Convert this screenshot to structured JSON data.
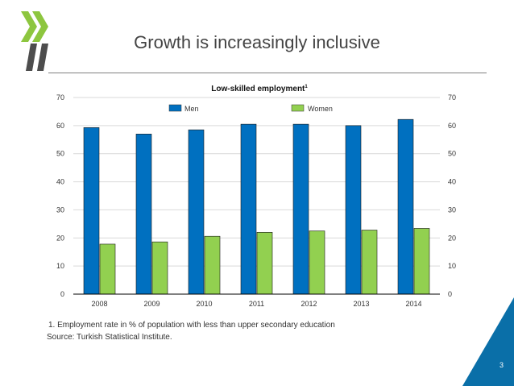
{
  "slide": {
    "title": "Growth is increasingly inclusive",
    "footnote": "1. Employment rate in % of population with less than upper secondary education",
    "source": "Source: Turkish Statistical Institute.",
    "page_number": "3"
  },
  "colors": {
    "men": "#0070c0",
    "women": "#92d050",
    "logo_green": "#8dc63f",
    "logo_dark": "#4d4d4d",
    "corner_blue": "#0a6fa8"
  },
  "chart_data": {
    "type": "bar",
    "title": "Low-skilled employment",
    "title_superscript": "1",
    "categories": [
      "2008",
      "2009",
      "2010",
      "2011",
      "2012",
      "2013",
      "2014"
    ],
    "series": [
      {
        "name": "Men",
        "values": [
          59.3,
          57.0,
          58.5,
          60.5,
          60.5,
          60.0,
          62.2
        ]
      },
      {
        "name": "Women",
        "values": [
          17.8,
          18.6,
          20.6,
          22.0,
          22.5,
          22.8,
          23.4
        ]
      }
    ],
    "ylim": [
      0,
      70
    ],
    "yticks": [
      0,
      10,
      20,
      30,
      40,
      50,
      60,
      70
    ],
    "xlabel": "",
    "ylabel": "",
    "legend": "top",
    "grid": true,
    "right_axis": true
  }
}
